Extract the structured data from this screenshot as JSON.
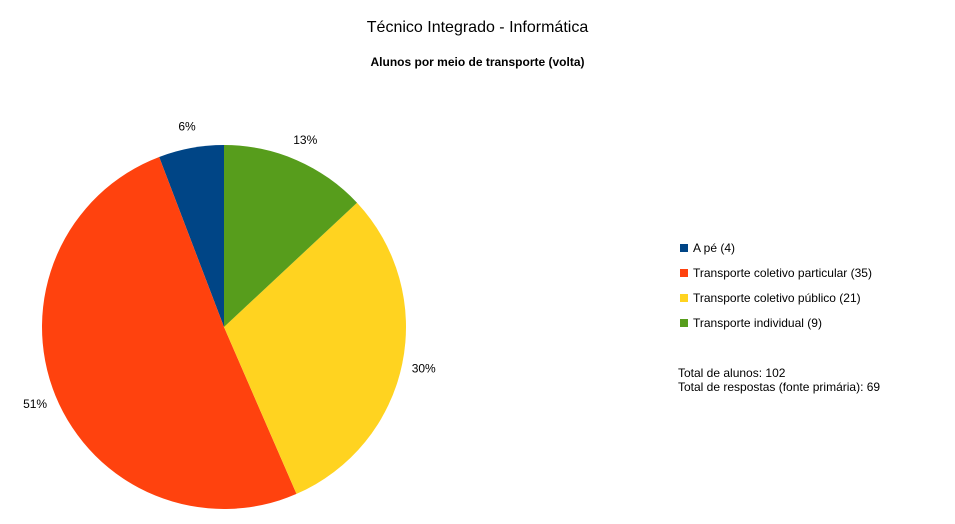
{
  "chart_data": {
    "type": "pie",
    "title": "Técnico Integrado - Informática",
    "subtitle": "Alunos por meio de transporte (volta)",
    "categories": [
      "A pé (4)",
      "Transporte coletivo particular (35)",
      "Transporte coletivo público (21)",
      "Transporte individual (9)"
    ],
    "values": [
      4,
      35,
      21,
      9
    ],
    "percent_labels": [
      "6%",
      "51%",
      "30%",
      "13%"
    ],
    "colors": [
      "#004586",
      "#ff420e",
      "#ffd320",
      "#579d1c"
    ],
    "legend": "right"
  },
  "notes": {
    "total_students": "Total de alunos: 102",
    "total_responses": "Total de respostas (fonte primária): 69"
  }
}
